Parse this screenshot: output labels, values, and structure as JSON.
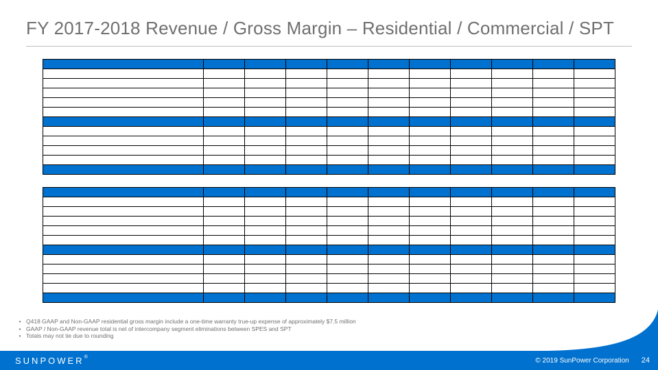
{
  "title": "FY 2017-2018 Revenue / Gross Margin – Residential / Commercial / SPT",
  "colors": {
    "brand_blue": "#0071ce",
    "title_gray": "#6f6f6f",
    "rule_gray": "#bfbfbf",
    "border": "#000000",
    "white": "#ffffff"
  },
  "table1": {
    "num_value_cols": 10,
    "rows": [
      {
        "type": "hdr",
        "cells": [
          "",
          "",
          "",
          "",
          "",
          "",
          "",
          "",
          "",
          "",
          ""
        ]
      },
      {
        "type": "plain",
        "cells": [
          "",
          "",
          "",
          "",
          "",
          "",
          "",
          "",
          "",
          "",
          ""
        ]
      },
      {
        "type": "plain",
        "cells": [
          "",
          "",
          "",
          "",
          "",
          "",
          "",
          "",
          "",
          "",
          ""
        ]
      },
      {
        "type": "plain",
        "cells": [
          "",
          "",
          "",
          "",
          "",
          "",
          "",
          "",
          "",
          "",
          ""
        ]
      },
      {
        "type": "plain",
        "cells": [
          "",
          "",
          "",
          "",
          "",
          "",
          "",
          "",
          "",
          "",
          ""
        ]
      },
      {
        "type": "plain",
        "cells": [
          "",
          "",
          "",
          "",
          "",
          "",
          "",
          "",
          "",
          "",
          ""
        ]
      },
      {
        "type": "hdr",
        "cells": [
          "",
          "",
          "",
          "",
          "",
          "",
          "",
          "",
          "",
          "",
          ""
        ]
      },
      {
        "type": "plain",
        "cells": [
          "",
          "",
          "",
          "",
          "",
          "",
          "",
          "",
          "",
          "",
          ""
        ]
      },
      {
        "type": "plain",
        "cells": [
          "",
          "",
          "",
          "",
          "",
          "",
          "",
          "",
          "",
          "",
          ""
        ]
      },
      {
        "type": "plain",
        "cells": [
          "",
          "",
          "",
          "",
          "",
          "",
          "",
          "",
          "",
          "",
          ""
        ]
      },
      {
        "type": "plain",
        "cells": [
          "",
          "",
          "",
          "",
          "",
          "",
          "",
          "",
          "",
          "",
          ""
        ]
      },
      {
        "type": "hdr",
        "cells": [
          "",
          "",
          "",
          "",
          "",
          "",
          "",
          "",
          "",
          "",
          ""
        ]
      }
    ]
  },
  "table2": {
    "num_value_cols": 10,
    "rows": [
      {
        "type": "hdr",
        "cells": [
          "",
          "",
          "",
          "",
          "",
          "",
          "",
          "",
          "",
          "",
          ""
        ]
      },
      {
        "type": "plain",
        "cells": [
          "",
          "",
          "",
          "",
          "",
          "",
          "",
          "",
          "",
          "",
          ""
        ]
      },
      {
        "type": "plain",
        "cells": [
          "",
          "",
          "",
          "",
          "",
          "",
          "",
          "",
          "",
          "",
          ""
        ]
      },
      {
        "type": "plain",
        "cells": [
          "",
          "",
          "",
          "",
          "",
          "",
          "",
          "",
          "",
          "",
          ""
        ]
      },
      {
        "type": "plain",
        "cells": [
          "",
          "",
          "",
          "",
          "",
          "",
          "",
          "",
          "",
          "",
          ""
        ]
      },
      {
        "type": "plain",
        "cells": [
          "",
          "",
          "",
          "",
          "",
          "",
          "",
          "",
          "",
          "",
          ""
        ]
      },
      {
        "type": "hdr",
        "cells": [
          "",
          "",
          "",
          "",
          "",
          "",
          "",
          "",
          "",
          "",
          ""
        ]
      },
      {
        "type": "plain",
        "cells": [
          "",
          "",
          "",
          "",
          "",
          "",
          "",
          "",
          "",
          "",
          ""
        ]
      },
      {
        "type": "plain",
        "cells": [
          "",
          "",
          "",
          "",
          "",
          "",
          "",
          "",
          "",
          "",
          ""
        ]
      },
      {
        "type": "plain",
        "cells": [
          "",
          "",
          "",
          "",
          "",
          "",
          "",
          "",
          "",
          "",
          ""
        ]
      },
      {
        "type": "plain",
        "cells": [
          "",
          "",
          "",
          "",
          "",
          "",
          "",
          "",
          "",
          "",
          ""
        ]
      },
      {
        "type": "hdr",
        "cells": [
          "",
          "",
          "",
          "",
          "",
          "",
          "",
          "",
          "",
          "",
          ""
        ]
      }
    ]
  },
  "footnotes": [
    "Q418 GAAP and Non-GAAP residential gross margin include a one-time warranty true-up expense of approximately $7.5 million",
    "GAAP / Non-GAAP revenue total is net of intercompany segment eliminations between SPES and SPT",
    "Totals may not tie due to rounding"
  ],
  "footer": {
    "logo": "SUNPOWER",
    "copyright": "© 2019 SunPower Corporation",
    "page": "24"
  }
}
